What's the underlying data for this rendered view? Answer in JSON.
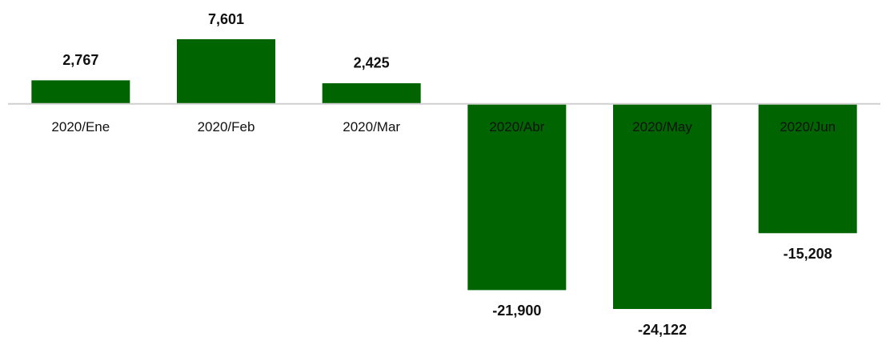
{
  "chart_data": {
    "type": "bar",
    "categories": [
      "2020/Ene",
      "2020/Feb",
      "2020/Mar",
      "2020/Abr",
      "2020/May",
      "2020/Jun"
    ],
    "values": [
      2767,
      7601,
      2425,
      -21900,
      -24122,
      -15208
    ],
    "value_labels": [
      "2,767",
      "7,601",
      "2,425",
      "-21,900",
      "-24,122",
      "-15,208"
    ],
    "color": "#006400"
  }
}
